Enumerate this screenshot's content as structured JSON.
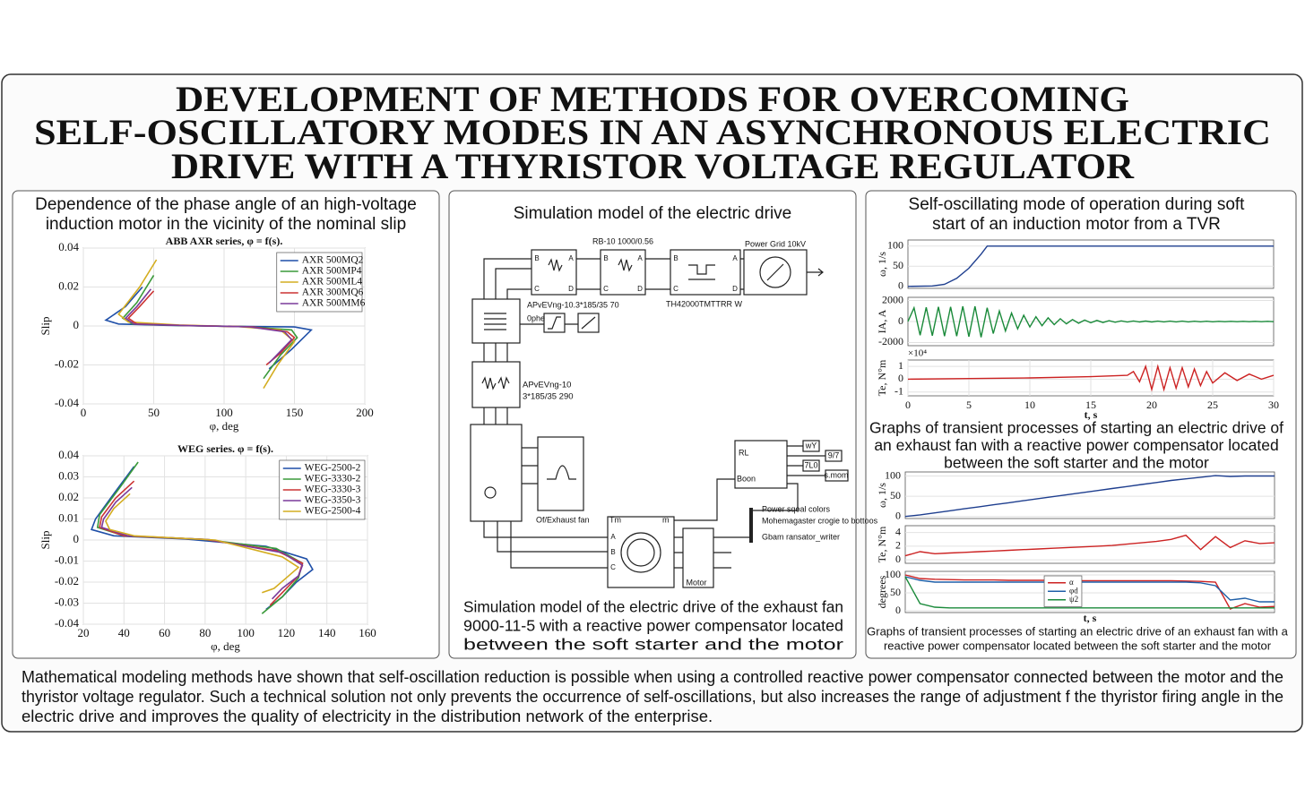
{
  "title_lines": [
    "DEVELOPMENT OF METHODS FOR OVERCOMING",
    "SELF-OSCILLATORY MODES IN AN ASYNCHRONOUS ELECTRIC",
    "DRIVE WITH A THYRISTOR VOLTAGE REGULATOR"
  ],
  "left_panel": {
    "heading_lines": [
      "Dependence of the phase angle of an high-voltage",
      "induction motor in the vicinity of the nominal slip"
    ],
    "charts": [
      {
        "type": "line",
        "title": "ABB AXR series, φ = f(s).",
        "xlabel": "φ, deg",
        "ylabel": "Slip",
        "xlim": [
          0,
          200
        ],
        "xticks": [
          0,
          50,
          100,
          150,
          200
        ],
        "ylim": [
          -0.04,
          0.04
        ],
        "yticks": [
          -0.04,
          -0.02,
          0,
          0.02,
          0.04
        ],
        "grid": true,
        "legend": "upper right",
        "series": [
          {
            "name": "AXR 500MQ2",
            "color": "#1f4fa8",
            "x": [
              42,
              30,
              16,
              25,
              60,
              110,
              150,
              162,
              148,
              132
            ],
            "values": [
              0.02,
              0.01,
              0.003,
              0.001,
              0.0003,
              -0.0002,
              -0.0005,
              -0.002,
              -0.012,
              -0.022
            ]
          },
          {
            "name": "AXR 500MP4",
            "color": "#3a9a3a",
            "x": [
              50,
              38,
              28,
              35,
              70,
              115,
              148,
              152,
              140,
              128
            ],
            "values": [
              0.026,
              0.012,
              0.004,
              0.001,
              0.0002,
              -0.0003,
              -0.002,
              -0.006,
              -0.015,
              -0.027
            ]
          },
          {
            "name": "AXR 500ML4",
            "color": "#d4ad20",
            "x": [
              52,
              40,
              25,
              32,
              68,
              110,
              140,
              150,
              138,
              128
            ],
            "values": [
              0.034,
              0.02,
              0.006,
              0.002,
              0.0005,
              -0.0003,
              -0.002,
              -0.008,
              -0.02,
              -0.032
            ]
          },
          {
            "name": "AXR 300MQ6",
            "color": "#cc3333",
            "x": [
              50,
              40,
              32,
              38,
              75,
              120,
              145,
              150,
              140,
              130
            ],
            "values": [
              0.018,
              0.01,
              0.004,
              0.001,
              0.0002,
              -0.0004,
              -0.003,
              -0.006,
              -0.014,
              -0.02
            ]
          },
          {
            "name": "AXR 500MM6",
            "color": "#7a3a9a",
            "x": [
              48,
              38,
              30,
              36,
              72,
              118,
              143,
              148,
              140,
              132
            ],
            "values": [
              0.019,
              0.01,
              0.004,
              0.001,
              0.0002,
              -0.0004,
              -0.003,
              -0.007,
              -0.013,
              -0.019
            ]
          }
        ]
      },
      {
        "type": "line",
        "title": "WEG series. φ = f(s).",
        "xlabel": "φ, deg",
        "ylabel": "Slip",
        "xlim": [
          20,
          160
        ],
        "xticks": [
          20,
          40,
          60,
          80,
          100,
          120,
          140,
          160
        ],
        "ylim": [
          -0.04,
          0.04
        ],
        "yticks": [
          -0.04,
          -0.03,
          -0.02,
          -0.01,
          0,
          0.01,
          0.02,
          0.03,
          0.04
        ],
        "grid": true,
        "legend": "upper right",
        "series": [
          {
            "name": "WEG-2500-2",
            "color": "#1f4fa8",
            "x": [
              45,
              35,
              26,
              24,
              35,
              70,
              110,
              130,
              133,
              125,
              118,
              110
            ],
            "values": [
              0.035,
              0.022,
              0.01,
              0.005,
              0.002,
              0.0005,
              -0.003,
              -0.009,
              -0.014,
              -0.02,
              -0.027,
              -0.033
            ]
          },
          {
            "name": "WEG-3330-2",
            "color": "#3a9a3a",
            "x": [
              47,
              38,
              28,
              27,
              40,
              80,
              115,
              128,
              126,
              118,
              108
            ],
            "values": [
              0.037,
              0.025,
              0.012,
              0.006,
              0.002,
              0.0003,
              -0.004,
              -0.011,
              -0.018,
              -0.027,
              -0.035
            ]
          },
          {
            "name": "WEG-3330-3",
            "color": "#cc3333",
            "x": [
              45,
              36,
              29,
              28,
              40,
              80,
              115,
              128,
              126,
              118,
              112
            ],
            "values": [
              0.028,
              0.02,
              0.011,
              0.006,
              0.002,
              0.0003,
              -0.005,
              -0.011,
              -0.017,
              -0.025,
              -0.031
            ]
          },
          {
            "name": "WEG-3350-3",
            "color": "#7a3a9a",
            "x": [
              44,
              36,
              30,
              29,
              42,
              82,
              118,
              128,
              126,
              118,
              113
            ],
            "values": [
              0.025,
              0.018,
              0.01,
              0.006,
              0.002,
              0.0002,
              -0.006,
              -0.012,
              -0.017,
              -0.023,
              -0.028
            ]
          },
          {
            "name": "WEG-2500-4",
            "color": "#d4ad20",
            "x": [
              43,
              35,
              31,
              33,
              45,
              85,
              118,
              126,
              120,
              114,
              108
            ],
            "values": [
              0.022,
              0.015,
              0.009,
              0.005,
              0.002,
              0,
              -0.008,
              -0.013,
              -0.018,
              -0.023,
              -0.025
            ]
          }
        ]
      }
    ]
  },
  "middle_panel": {
    "heading": "Simulation model of the electric drive",
    "labels": {
      "rb": "RB-10 1000/0.56",
      "grid": "Power Grid 10kV",
      "cable1": "APvEVng-10.3*185/35 70",
      "th": "TH42000TMTTRR W",
      "phe": "0phe",
      "fan": "Of/Exhaust fan",
      "tm": "Tm",
      "m": "m",
      "motor": "Motor",
      "rl": "RL",
      "boon": "Boon",
      "power1": "Power sqoal colors",
      "power2": "Mohemagaster crogie to bottoos",
      "power3": "Gbam ransator_writer",
      "wy": "wY",
      "n97": "9/7",
      "tlo": "7L0",
      "smom": "s.mom"
    },
    "cable2_lines": [
      "APvEVng-10",
      "3*185/35 290"
    ],
    "pins": [
      "B",
      "C",
      "A",
      "D",
      "B",
      "C",
      "A",
      "D",
      "B",
      "C",
      "A",
      "D",
      "A",
      "B",
      "C"
    ],
    "caption_lines": [
      "Simulation model of the electric drive of the exhaust fan",
      "9000-11-5 with a reactive power compensator located",
      "between the soft starter and the motor"
    ]
  },
  "right_panel": {
    "heading_lines": [
      "Self-oscillating mode of operation during soft",
      "start of an induction motor from a TVR"
    ],
    "charts": [
      {
        "type": "line",
        "ylabel": "ω, 1/s",
        "xlim": [
          0,
          30
        ],
        "ylim": [
          -5,
          115
        ],
        "yticks": [
          0,
          50,
          100
        ],
        "grid": true,
        "series": [
          {
            "color": "#1f3f8f",
            "x": [
              0,
              2,
              3,
              4,
              5,
              6,
              6.5,
              7,
              30
            ],
            "values": [
              0,
              1,
              5,
              20,
              45,
              80,
              100,
              100,
              100
            ]
          }
        ]
      },
      {
        "type": "line",
        "ylabel": "IA, A",
        "xlim": [
          0,
          30
        ],
        "ylim": [
          -2300,
          2300
        ],
        "yticks": [
          -2000,
          0,
          2000
        ],
        "grid": true,
        "series": [
          {
            "color": "#1a8a3a",
            "x": [
              0,
              0.5,
              1,
              1.5,
              2,
              2.5,
              3,
              3.5,
              4,
              4.5,
              5,
              5.5,
              6,
              6.5,
              7,
              7.5,
              8,
              8.5,
              9,
              9.5,
              10,
              10.5,
              11,
              11.5,
              12,
              12.5,
              13,
              13.5,
              14,
              14.5,
              15,
              15.5,
              16,
              16.5,
              17,
              17.5,
              18,
              18.5,
              19,
              19.5,
              20,
              20.5,
              21,
              21.5,
              22,
              22.5,
              23,
              23.5,
              24,
              24.5,
              25,
              25.5,
              26,
              26.5,
              27,
              27.5,
              28,
              28.5,
              29,
              29.5,
              30
            ],
            "values": [
              0,
              1300,
              -1300,
              1350,
              -1350,
              1400,
              -1400,
              1400,
              -1400,
              1450,
              -1450,
              1450,
              -1500,
              1300,
              -1150,
              1000,
              -900,
              800,
              -700,
              600,
              -520,
              450,
              -400,
              350,
              -300,
              260,
              -220,
              190,
              -160,
              140,
              -120,
              100,
              -90,
              80,
              -70,
              60,
              -55,
              50,
              -45,
              40,
              -40,
              35,
              -35,
              30,
              -30,
              30,
              -30,
              25,
              -25,
              25,
              -25,
              20,
              -20,
              20,
              -20,
              20,
              -20,
              20,
              -20,
              20,
              -20
            ]
          }
        ]
      },
      {
        "type": "line",
        "ylabel": "Te, N°m",
        "multiplier": "×10⁴",
        "xlabel": "t, s",
        "xlim": [
          0,
          30
        ],
        "xticks": [
          0,
          5,
          10,
          15,
          20,
          25,
          30
        ],
        "ylim": [
          -1.3,
          1.5
        ],
        "yticks": [
          -1,
          0,
          1
        ],
        "grid": true,
        "series": [
          {
            "color": "#cc2222",
            "x": [
              0,
              5,
              10,
              15,
              18,
              18.5,
              19,
              19.5,
              20,
              20.5,
              21,
              21.5,
              22,
              22.5,
              23,
              23.5,
              24,
              24.5,
              25,
              26,
              27,
              28,
              29,
              30
            ],
            "values": [
              0,
              0.05,
              0.1,
              0.2,
              0.3,
              0.6,
              -0.2,
              1,
              -0.8,
              1,
              -0.8,
              0.9,
              -0.7,
              0.9,
              -0.6,
              0.8,
              -0.5,
              0.6,
              -0.3,
              0.5,
              -0.1,
              0.4,
              0,
              0.3
            ]
          }
        ]
      }
    ],
    "heading2_lines": [
      "Graphs of transient processes of starting an electric drive of",
      "an exhaust fan with a reactive power compensator located",
      "between the soft starter and the motor"
    ],
    "charts2": [
      {
        "type": "line",
        "ylabel": "ω, 1/s",
        "ylim": [
          -5,
          110
        ],
        "yticks": [
          0,
          50,
          100
        ],
        "grid": true,
        "series": [
          {
            "color": "#1f3f8f",
            "values": [
              0,
              4,
              9,
              14,
              19,
              24,
              29,
              34,
              39,
              44,
              49,
              54,
              59,
              64,
              69,
              74,
              79,
              84,
              89,
              93,
              97,
              101,
              99,
              100,
              100,
              100
            ]
          }
        ]
      },
      {
        "type": "line",
        "ylabel": "Te, N°m",
        "ylim": [
          -0.5,
          5
        ],
        "yticks": [
          0,
          2,
          4
        ],
        "grid": true,
        "series": [
          {
            "color": "#cc2222",
            "values": [
              0.6,
              1.2,
              0.9,
              1,
              1.1,
              1.2,
              1.3,
              1.4,
              1.5,
              1.6,
              1.7,
              1.8,
              1.9,
              2,
              2.1,
              2.3,
              2.5,
              2.7,
              3,
              3.6,
              1.5,
              3.4,
              1.8,
              2.8,
              2.4,
              2.5
            ]
          }
        ]
      },
      {
        "type": "line",
        "ylabel": "degrees",
        "xlabel": "t, s",
        "ylim": [
          -5,
          110
        ],
        "yticks": [
          0,
          50,
          100
        ],
        "grid": true,
        "legend": "upper center",
        "series": [
          {
            "name": "α",
            "color": "#cc2222",
            "values": [
              100,
              90,
              88,
              87,
              86,
              86,
              86,
              85,
              85,
              85,
              85,
              84,
              84,
              84,
              84,
              84,
              84,
              84,
              84,
              83,
              82,
              80,
              5,
              20,
              10,
              12
            ]
          },
          {
            "name": "φd",
            "color": "#1f5fa8",
            "values": [
              95,
              85,
              80,
              80,
              80,
              80,
              80,
              80,
              80,
              80,
              80,
              80,
              80,
              80,
              80,
              80,
              80,
              80,
              80,
              80,
              78,
              70,
              30,
              35,
              25,
              25
            ]
          },
          {
            "name": "ψ2",
            "color": "#1a8a3a",
            "values": [
              95,
              20,
              10,
              8,
              8,
              8,
              8,
              8,
              8,
              8,
              8,
              8,
              8,
              8,
              8,
              8,
              8,
              8,
              8,
              8,
              8,
              8,
              8,
              8,
              8,
              8
            ]
          }
        ]
      }
    ],
    "caption_lines": [
      "Graphs of transient processes of starting an electric drive of an exhaust fan with a",
      "reactive power compensator located between the soft starter and the motor"
    ]
  },
  "footer_lines": [
    "Mathematical modeling methods have shown that self-oscillation reduction is possible when using a controlled reactive power compensator connected between the motor and the",
    "thyristor voltage regulator. Such a technical solution not only prevents the occurrence of self-oscillations, but also increases the range of adjustment f the thyristor firing angle in the",
    "electric drive and improves the quality of electricity in the distribution network of the enterprise."
  ]
}
